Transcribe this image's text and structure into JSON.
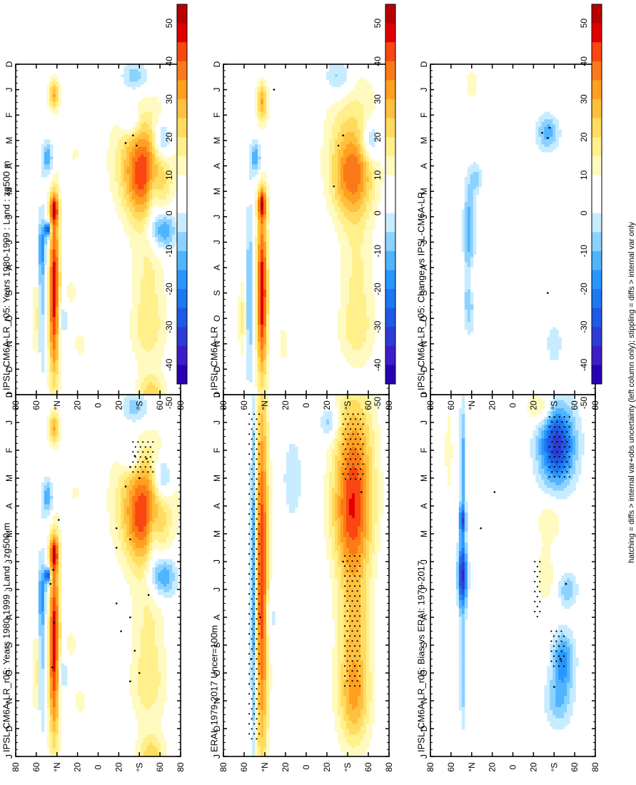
{
  "palette": {
    "positive": [
      "#b80000",
      "#e00000",
      "#fa4610",
      "#fa7a19",
      "#ffa020",
      "#ffc040",
      "#ffdc60",
      "#fff08c",
      "#fffac0",
      "#ffffff"
    ],
    "negative": [
      "#ffffff",
      "#c8ecff",
      "#8cd2ff",
      "#50b4ff",
      "#2896ff",
      "#1e78f0",
      "#1e5ae6",
      "#2d3cd2",
      "#3c1ec8",
      "#2800b4"
    ],
    "stipple_color": "#000000"
  },
  "colorbar": {
    "ticks": [
      "50",
      "40",
      "30",
      "20",
      "10",
      "0",
      "-10",
      "-20",
      "-30",
      "-40",
      "-50"
    ]
  },
  "footnote": "hatching = diffs > internal var+obs uncertainty (left column only); stippling = diffs > internal var only",
  "chart_data": [
    {
      "id": "p1",
      "type": "heatmap",
      "title": "IPSL-CM6A-LR_r05: Years 1980-1999 : Land : zg500 m",
      "x_labels": [
        "D",
        "J",
        "F",
        "M",
        "A",
        "M",
        "J",
        "J",
        "A",
        "S",
        "O",
        "N",
        "D",
        "J"
      ],
      "y_labels": [
        "80",
        "60",
        "°N",
        "20",
        "0",
        "20",
        "°S",
        "60",
        "80"
      ],
      "ylim": [
        -90,
        90
      ],
      "units": "m",
      "blobs": [
        [
          4.5,
          50,
          1.7,
          22,
          28
        ],
        [
          3.5,
          50,
          2.2,
          35,
          15
        ],
        [
          8,
          55,
          2,
          18,
          10
        ],
        [
          10.5,
          55,
          1.5,
          20,
          12
        ],
        [
          13,
          58,
          0.8,
          15,
          18
        ],
        [
          3,
          70,
          0.8,
          10,
          -25
        ],
        [
          5,
          60,
          1.2,
          8,
          -15
        ],
        [
          6.5,
          70,
          0.8,
          15,
          -25
        ],
        [
          0.5,
          40,
          0.6,
          15,
          -15
        ],
        [
          2.2,
          35,
          0.6,
          10,
          -15
        ],
        [
          9,
          -48,
          3.5,
          6,
          45
        ],
        [
          5.7,
          -48,
          0.6,
          5,
          30
        ],
        [
          1.2,
          -48,
          0.6,
          6,
          25
        ],
        [
          3.7,
          -55,
          0.7,
          6,
          -20
        ],
        [
          7.2,
          -60,
          1,
          6,
          -15
        ],
        [
          10,
          -40,
          0.8,
          6,
          -12
        ],
        [
          6.5,
          -55,
          0.3,
          3,
          -40
        ],
        [
          9,
          -62,
          3.5,
          2,
          -20
        ],
        [
          10,
          -68,
          1.5,
          4,
          12
        ],
        [
          9,
          -30,
          0.6,
          6,
          8
        ],
        [
          3.5,
          -25,
          0.3,
          5,
          8
        ],
        [
          11,
          -20,
          0.6,
          6,
          8
        ]
      ],
      "stipples": [
        [
          2.2,
          40
        ],
        [
          2.3,
          53
        ],
        [
          2.6,
          35
        ],
        [
          3,
          45
        ],
        [
          3.3,
          30
        ],
        [
          4.5,
          -43
        ],
        [
          4.8,
          20
        ],
        [
          5.2,
          35
        ],
        [
          5.5,
          20
        ],
        [
          6.3,
          -49
        ],
        [
          6.8,
          -52
        ],
        [
          7.2,
          55
        ],
        [
          7.5,
          20
        ],
        [
          8,
          35
        ],
        [
          8.2,
          -48
        ],
        [
          8.5,
          25
        ],
        [
          9.2,
          40
        ],
        [
          9.8,
          -50
        ],
        [
          10,
          45
        ],
        [
          10.3,
          35
        ]
      ],
      "hatch_boxes": [
        [
          1.7,
          2.8,
          38,
          60
        ]
      ]
    },
    {
      "id": "p2",
      "type": "heatmap",
      "title": "IPSL-CM6A-LR_r05: Years 1980-1999 : Land : zg500 m",
      "x_labels": [
        "D",
        "J",
        "F",
        "M",
        "A",
        "M",
        "J",
        "J",
        "A",
        "S",
        "O",
        "N",
        "D",
        "J"
      ],
      "y_labels": [
        "80",
        "60",
        "°N",
        "20",
        "0",
        "20",
        "°S",
        "60",
        "80"
      ],
      "ylim": [
        -90,
        90
      ],
      "units": "m",
      "blobs": [
        [
          4.5,
          50,
          1.7,
          22,
          28
        ],
        [
          3.5,
          50,
          2.2,
          35,
          15
        ],
        [
          8,
          55,
          2,
          18,
          10
        ],
        [
          10.5,
          55,
          1.5,
          20,
          12
        ],
        [
          13,
          58,
          0.8,
          15,
          18
        ],
        [
          3,
          70,
          0.8,
          10,
          -25
        ],
        [
          5,
          60,
          1.2,
          8,
          -15
        ],
        [
          6.5,
          70,
          0.8,
          15,
          -25
        ],
        [
          0.5,
          40,
          0.6,
          15,
          -15
        ],
        [
          2.2,
          35,
          0.6,
          10,
          -15
        ],
        [
          9,
          -48,
          3.5,
          6,
          45
        ],
        [
          5.7,
          -48,
          0.6,
          5,
          30
        ],
        [
          1.2,
          -48,
          0.6,
          6,
          25
        ],
        [
          3.7,
          -55,
          0.7,
          6,
          -20
        ],
        [
          7.2,
          -60,
          1,
          6,
          -15
        ],
        [
          10,
          -40,
          0.8,
          6,
          -12
        ],
        [
          6.5,
          -55,
          0.3,
          3,
          -40
        ],
        [
          9,
          -62,
          3.5,
          2,
          -20
        ],
        [
          10,
          -68,
          1.5,
          4,
          12
        ],
        [
          9,
          -30,
          0.6,
          6,
          8
        ],
        [
          3.5,
          -25,
          0.3,
          5,
          8
        ],
        [
          11,
          -20,
          0.6,
          6,
          8
        ]
      ],
      "stipples": [
        [
          2.8,
          38
        ],
        [
          3.1,
          30
        ],
        [
          3.2,
          42
        ]
      ],
      "hatch_boxes": []
    },
    {
      "id": "p3",
      "type": "heatmap",
      "title": "ERAI: 1979-2017 Uncer=100m",
      "x_labels": [
        "D",
        "J",
        "F",
        "M",
        "A",
        "M",
        "J",
        "J",
        "A",
        "S",
        "O",
        "N",
        "D",
        "J"
      ],
      "y_labels": [
        "80",
        "60",
        "°N",
        "20",
        "0",
        "20",
        "°S",
        "60",
        "80"
      ],
      "ylim": [
        -90,
        90
      ],
      "units": "m",
      "blobs": [
        [
          4.5,
          50,
          2,
          22,
          28
        ],
        [
          2,
          52,
          2.5,
          22,
          25
        ],
        [
          8,
          52,
          2.5,
          18,
          20
        ],
        [
          11,
          52,
          1.8,
          18,
          22
        ],
        [
          6.5,
          -48,
          7,
          7,
          40
        ],
        [
          6.5,
          -58,
          7,
          3,
          -25
        ],
        [
          6.5,
          -62,
          7,
          1.5,
          10
        ],
        [
          3,
          -15,
          1.5,
          10,
          -10
        ],
        [
          8,
          -40,
          1,
          6,
          -12
        ],
        [
          1,
          25,
          0.6,
          10,
          -15
        ]
      ],
      "stipples": [
        [
          3.5,
          60
        ],
        [
          6,
          40
        ],
        [
          8,
          -50
        ],
        [
          9.5,
          -60
        ]
      ],
      "hatch_boxes": [
        [
          0.7,
          3.2,
          40,
          62
        ],
        [
          5.8,
          10.5,
          42,
          60
        ],
        [
          0.7,
          12.5,
          -50,
          -62
        ]
      ]
    },
    {
      "id": "p4",
      "type": "heatmap",
      "title": "IPSL-CM6A-LR",
      "x_labels": [
        "D",
        "J",
        "F",
        "M",
        "A",
        "M",
        "J",
        "J",
        "A",
        "S",
        "O",
        "N",
        "D",
        "J"
      ],
      "y_labels": [
        "80",
        "60",
        "°N",
        "20",
        "0",
        "20",
        "°S",
        "60",
        "80"
      ],
      "ylim": [
        -90,
        90
      ],
      "units": "m",
      "blobs": [
        [
          4.5,
          50,
          1.7,
          22,
          28
        ],
        [
          2.5,
          50,
          2.5,
          30,
          12
        ],
        [
          8,
          55,
          2,
          18,
          10
        ],
        [
          10.5,
          55,
          1.5,
          20,
          12
        ],
        [
          3,
          70,
          0.8,
          10,
          -20
        ],
        [
          0.5,
          35,
          0.8,
          15,
          -15
        ],
        [
          9,
          -48,
          3.5,
          6,
          45
        ],
        [
          5.5,
          -48,
          0.6,
          5,
          30
        ],
        [
          1.5,
          -48,
          0.8,
          6,
          25
        ],
        [
          3.7,
          -55,
          0.7,
          6,
          -20
        ],
        [
          9,
          -62,
          3.5,
          2,
          -25
        ],
        [
          10,
          -70,
          1.5,
          4,
          12
        ],
        [
          11,
          -25,
          0.8,
          6,
          8
        ]
      ],
      "stipples": [
        [
          2.8,
          40
        ],
        [
          3.2,
          35
        ],
        [
          4.8,
          30
        ],
        [
          1,
          -35
        ]
      ],
      "hatch_boxes": []
    },
    {
      "id": "p5",
      "type": "heatmap",
      "title": "IPSL-CM6A-LR_r05: Bias vs ERAI: 1979-2017",
      "x_labels": [
        "D",
        "J",
        "F",
        "M",
        "A",
        "M",
        "J",
        "J",
        "A",
        "S",
        "O",
        "N",
        "D",
        "J"
      ],
      "y_labels": [
        "80",
        "60",
        "°N",
        "20",
        "0",
        "20",
        "°S",
        "60",
        "80"
      ],
      "ylim": [
        -90,
        90
      ],
      "units": "m",
      "blobs": [
        [
          1.8,
          48,
          1.5,
          20,
          -38
        ],
        [
          9.5,
          55,
          1,
          12,
          -22
        ],
        [
          11,
          50,
          1,
          15,
          -15
        ],
        [
          7,
          60,
          0.6,
          10,
          -15
        ],
        [
          4.5,
          40,
          0.8,
          15,
          10
        ],
        [
          6.5,
          35,
          1,
          10,
          10
        ],
        [
          6.5,
          -55,
          1.2,
          5,
          -40
        ],
        [
          2.5,
          -55,
          2.5,
          3,
          -18
        ],
        [
          10,
          -55,
          2,
          3,
          -15
        ],
        [
          4.5,
          -55,
          0.5,
          4,
          -25
        ],
        [
          2,
          -70,
          1.5,
          4,
          10
        ],
        [
          0.5,
          30,
          0.6,
          15,
          15
        ]
      ],
      "stipples": [
        [
          3.5,
          -20
        ],
        [
          4.8,
          -35
        ],
        [
          6.8,
          58
        ],
        [
          9.5,
          52
        ],
        [
          10.5,
          45
        ]
      ],
      "hatch_boxes": [
        [
          0.8,
          3.0,
          40,
          62
        ],
        [
          6.0,
          8.0,
          24,
          32
        ],
        [
          8.5,
          9.8,
          42,
          58
        ]
      ]
    },
    {
      "id": "p6",
      "type": "heatmap",
      "title": "IPSL-CM6A-LR_r05: Change vs IPSL-CM6A-LR",
      "x_labels": [
        "D",
        "J",
        "F",
        "M",
        "A",
        "M",
        "J",
        "J",
        "A",
        "S",
        "O",
        "N",
        "D",
        "J"
      ],
      "y_labels": [
        "80",
        "60",
        "°N",
        "20",
        "0",
        "20",
        "°S",
        "60",
        "80"
      ],
      "ylim": [
        -90,
        90
      ],
      "units": "m",
      "blobs": [
        [
          2.7,
          38,
          0.7,
          12,
          -18
        ],
        [
          6.5,
          -48,
          2,
          6,
          -18
        ],
        [
          9.5,
          -48,
          1.2,
          6,
          -12
        ],
        [
          8.5,
          -45,
          0.6,
          4,
          10
        ],
        [
          0.8,
          -45,
          0.6,
          6,
          10
        ],
        [
          6.5,
          -62,
          7,
          1,
          -20
        ],
        [
          3.5,
          -62,
          7,
          1,
          -12
        ],
        [
          4.5,
          -40,
          0.6,
          6,
          -12
        ],
        [
          11,
          45,
          0.8,
          8,
          -10
        ]
      ],
      "stipples": [
        [
          2.5,
          40
        ],
        [
          2.7,
          32
        ],
        [
          2.9,
          38
        ],
        [
          9,
          38
        ]
      ],
      "hatch_boxes": []
    }
  ]
}
